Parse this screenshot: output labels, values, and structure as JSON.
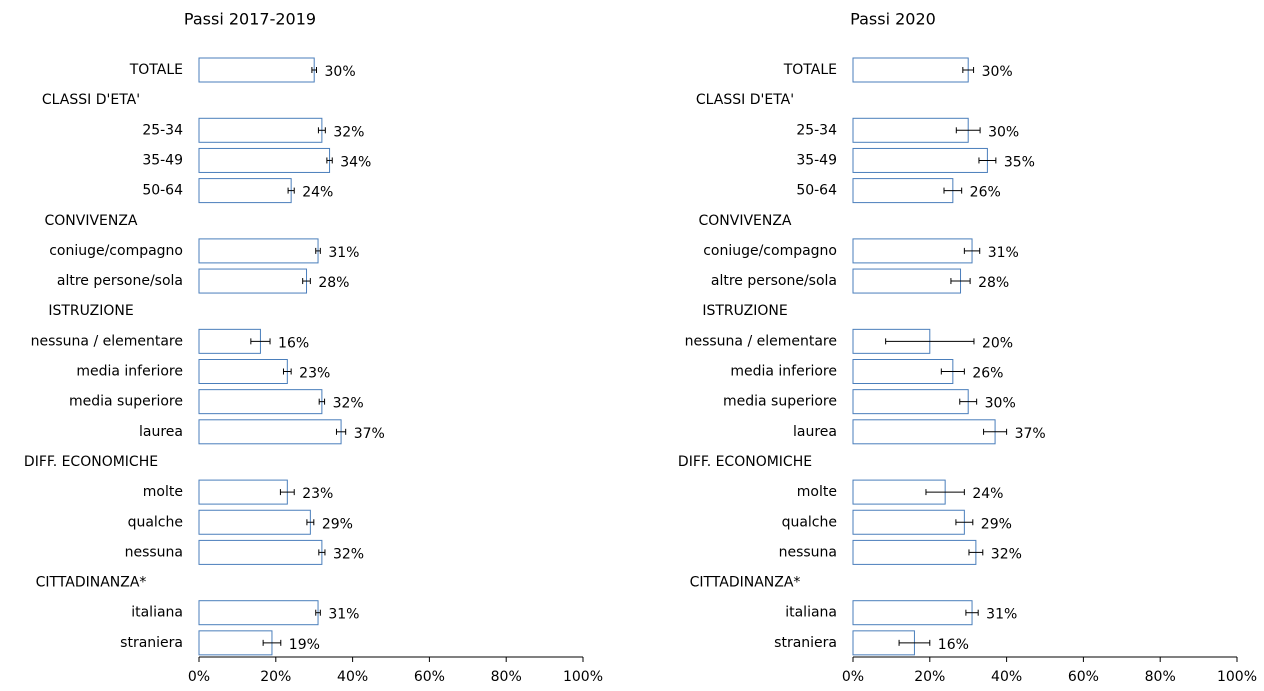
{
  "chart_data": [
    {
      "type": "bar",
      "orientation": "horizontal",
      "title": "Passi 2017-2019",
      "categories": [
        "TOTALE",
        "CLASSI D'ETA'",
        "25-34",
        "35-49",
        "50-64",
        "CONVIVENZA",
        "coniuge/compagno",
        "altre persone/sola",
        "ISTRUZIONE",
        "nessuna / elementare",
        "media inferiore",
        "media superiore",
        "laurea",
        "DIFF. ECONOMICHE",
        "molte",
        "qualche",
        "nessuna",
        "CITTADINANZA*",
        "italiana",
        "straniera"
      ],
      "values": [
        30,
        null,
        32,
        34,
        24,
        null,
        31,
        28,
        null,
        16,
        23,
        32,
        37,
        null,
        23,
        29,
        32,
        null,
        31,
        19
      ],
      "errors": [
        0.6,
        null,
        0.9,
        0.7,
        0.8,
        null,
        0.6,
        1.0,
        null,
        2.5,
        1.0,
        0.7,
        1.2,
        null,
        1.8,
        0.9,
        0.8,
        null,
        0.6,
        2.3
      ],
      "value_labels": [
        "30%",
        null,
        "32%",
        "34%",
        "24%",
        null,
        "31%",
        "28%",
        null,
        "16%",
        "23%",
        "32%",
        "37%",
        null,
        "23%",
        "29%",
        "32%",
        null,
        "31%",
        "19%"
      ],
      "color": "#4a7ebb",
      "error_color": "#000000",
      "xlim": [
        0,
        100
      ],
      "xticks": [
        {
          "value": 0,
          "label": "0%"
        },
        {
          "value": 20,
          "label": "20%"
        },
        {
          "value": 40,
          "label": "40%"
        },
        {
          "value": 60,
          "label": "60%"
        },
        {
          "value": 80,
          "label": "80%"
        },
        {
          "value": 100,
          "label": "100%"
        }
      ]
    },
    {
      "type": "bar",
      "orientation": "horizontal",
      "title": "Passi 2020",
      "categories": [
        "TOTALE",
        "CLASSI D'ETA'",
        "25-34",
        "35-49",
        "50-64",
        "CONVIVENZA",
        "coniuge/compagno",
        "altre persone/sola",
        "ISTRUZIONE",
        "nessuna / elementare",
        "media inferiore",
        "media superiore",
        "laurea",
        "DIFF. ECONOMICHE",
        "molte",
        "qualche",
        "nessuna",
        "CITTADINANZA*",
        "italiana",
        "straniera"
      ],
      "values": [
        30,
        null,
        30,
        35,
        26,
        null,
        31,
        28,
        null,
        20,
        26,
        30,
        37,
        null,
        24,
        29,
        32,
        null,
        31,
        16
      ],
      "errors": [
        1.4,
        null,
        3.1,
        2.2,
        2.3,
        null,
        2.0,
        2.5,
        null,
        11.5,
        3.0,
        2.2,
        3.0,
        null,
        5.0,
        2.2,
        1.8,
        null,
        1.6,
        4.0
      ],
      "value_labels": [
        "30%",
        null,
        "30%",
        "35%",
        "26%",
        null,
        "31%",
        "28%",
        null,
        "20%",
        "26%",
        "30%",
        "37%",
        null,
        "24%",
        "29%",
        "32%",
        null,
        "31%",
        "16%"
      ],
      "color": "#4a7ebb",
      "error_color": "#000000",
      "xlim": [
        0,
        100
      ],
      "xticks": [
        {
          "value": 0,
          "label": "0%"
        },
        {
          "value": 20,
          "label": "20%"
        },
        {
          "value": 40,
          "label": "40%"
        },
        {
          "value": 60,
          "label": "60%"
        },
        {
          "value": 80,
          "label": "80%"
        },
        {
          "value": 100,
          "label": "100%"
        }
      ]
    }
  ]
}
